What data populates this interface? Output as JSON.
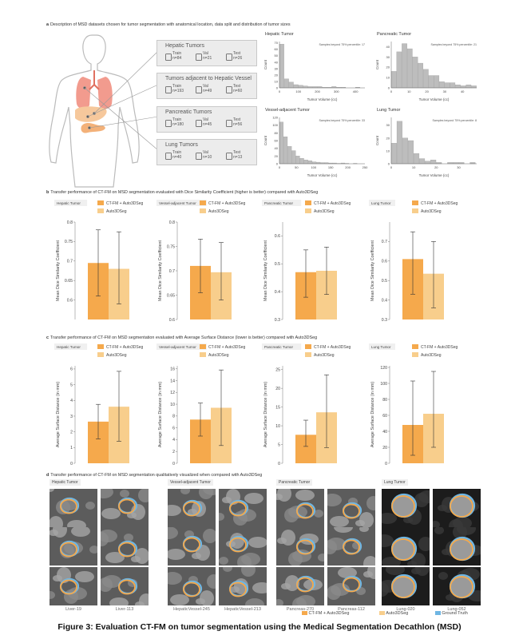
{
  "figure": {
    "caption": "Figure 3: Evaluation CT-FM on tumor segmentation using the Medical Segmentation Decathlon (MSD)",
    "colors": {
      "ctfm": "#F5A94C",
      "auto3d": "#F8CE8C",
      "gt": "#6FB6E3",
      "hist": "#bdbdbd"
    }
  },
  "section_a": {
    "label": "a",
    "title": "Description of MSD datasets chosen for tumor segmentation with anatomical location, data split and distribution of tumor sizes",
    "datasets": [
      {
        "name": "Hepatic Tumors",
        "train": "Train",
        "train_n": "n=84",
        "val": "Val",
        "val_n": "n=21",
        "test": "Test",
        "test_n": "n=26"
      },
      {
        "name": "Tumors adjacent to Hepatic Vessel",
        "train": "Train",
        "train_n": "n=193",
        "val": "Val",
        "val_n": "n=49",
        "test": "Test",
        "test_n": "n=60"
      },
      {
        "name": "Pancreatic Tumors",
        "train": "Train",
        "train_n": "n=180",
        "val": "Val",
        "val_n": "n=45",
        "test": "Test",
        "test_n": "n=56"
      },
      {
        "name": "Lung Tumors",
        "train": "Train",
        "train_n": "n=40",
        "val": "Val",
        "val_n": "n=10",
        "test": "Test",
        "test_n": "n=13"
      }
    ]
  },
  "chart_data": [
    {
      "type": "bar",
      "title": "Hepatic Tumor",
      "xlabel": "Tumor Volume (cc)",
      "ylabel": "Count",
      "annotation": "Samples beyond 75% percentile: 17",
      "x": [
        0,
        25,
        50,
        75,
        100,
        125,
        150,
        175,
        200,
        225,
        250,
        275,
        300,
        325,
        350,
        375,
        400,
        425
      ],
      "values": [
        68,
        14,
        9,
        5,
        4,
        3,
        2,
        2,
        2,
        1,
        1,
        2,
        1,
        1,
        0,
        0,
        1,
        0
      ],
      "xticks": [
        0,
        100,
        200,
        300,
        400
      ],
      "yticks": [
        0,
        10,
        20,
        30,
        40,
        50,
        60,
        70
      ],
      "xlim": [
        0,
        450
      ],
      "ylim": [
        0,
        72
      ]
    },
    {
      "type": "bar",
      "title": "Pancreatic Tumor",
      "xlabel": "Tumor Volume (cc)",
      "ylabel": "Count",
      "annotation": "Samples beyond 75% percentile: 21",
      "x": [
        0,
        3,
        6,
        9,
        12,
        15,
        18,
        21,
        24,
        27,
        30,
        33,
        36,
        39,
        42,
        45
      ],
      "values": [
        16,
        35,
        43,
        38,
        30,
        24,
        18,
        12,
        12,
        6,
        5,
        5,
        3,
        2,
        3,
        2
      ],
      "xticks": [
        0,
        10,
        20,
        30,
        40
      ],
      "yticks": [
        0,
        10,
        20,
        30,
        40
      ],
      "xlim": [
        0,
        48
      ],
      "ylim": [
        0,
        45
      ]
    },
    {
      "type": "bar",
      "title": "Vessel-adjacent Tumor",
      "xlabel": "Tumor Volume (cc)",
      "ylabel": "Count",
      "annotation": "Samples beyond 75% percentile: 33",
      "x": [
        0,
        12,
        24,
        36,
        48,
        60,
        72,
        84,
        96,
        108,
        120,
        132,
        144,
        156,
        168,
        180,
        192,
        204,
        216
      ],
      "values": [
        108,
        70,
        45,
        34,
        20,
        14,
        10,
        8,
        5,
        4,
        3,
        3,
        2,
        2,
        1,
        2,
        1,
        0,
        1
      ],
      "xticks": [
        0,
        50,
        100,
        150,
        200,
        250
      ],
      "yticks": [
        0,
        20,
        40,
        60,
        80,
        100,
        120
      ],
      "xlim": [
        0,
        250
      ],
      "ylim": [
        0,
        120
      ]
    },
    {
      "type": "bar",
      "title": "Lung Tumor",
      "xlabel": "Tumor Volume (cc)",
      "ylabel": "Count",
      "annotation": "Samples beyond 75% percentile: 8",
      "x": [
        0,
        2.5,
        5,
        7.5,
        10,
        12.5,
        15,
        17.5,
        20,
        22.5,
        25,
        27.5,
        30,
        32.5,
        35
      ],
      "values": [
        16,
        33,
        20,
        18,
        8,
        4,
        2,
        3,
        1,
        0,
        1,
        1,
        1,
        0,
        1
      ],
      "xticks": [
        0,
        10,
        20,
        30
      ],
      "yticks": [
        0,
        10,
        20,
        30
      ],
      "xlim": [
        0,
        38
      ],
      "ylim": [
        0,
        36
      ]
    },
    {
      "type": "bar",
      "title": "Hepatic Tumor",
      "ylabel": "Mean Dice Similarity Coefficient",
      "series": [
        {
          "name": "CT-FM + Auto3DSeg",
          "value": 0.695,
          "err": [
            0.61,
            0.78
          ]
        },
        {
          "name": "Auto3DSeg",
          "value": 0.68,
          "err": [
            0.59,
            0.775
          ]
        }
      ],
      "yticks": [
        0.6,
        0.65,
        0.7,
        0.75,
        0.8
      ],
      "ylim": [
        0.55,
        0.8
      ]
    },
    {
      "type": "bar",
      "title": "Vessel-adjacent Tumor",
      "ylabel": "Mean Dice Similarity Coefficient",
      "series": [
        {
          "name": "CT-FM + Auto3DSeg",
          "value": 0.71,
          "err": [
            0.655,
            0.765
          ]
        },
        {
          "name": "Auto3DSeg",
          "value": 0.697,
          "err": [
            0.64,
            0.758
          ]
        }
      ],
      "yticks": [
        0.6,
        0.65,
        0.7,
        0.75,
        0.8
      ],
      "ylim": [
        0.6,
        0.8
      ]
    },
    {
      "type": "bar",
      "title": "Pancreatic Tumor",
      "ylabel": "Mean Dice Similarity Coefficient",
      "series": [
        {
          "name": "CT-FM + Auto3DSeg",
          "value": 0.47,
          "err": [
            0.38,
            0.55
          ]
        },
        {
          "name": "Auto3DSeg",
          "value": 0.475,
          "err": [
            0.39,
            0.56
          ]
        }
      ],
      "yticks": [
        0.3,
        0.4,
        0.5,
        0.6
      ],
      "ylim": [
        0.3,
        0.65
      ]
    },
    {
      "type": "bar",
      "title": "Lung Tumor",
      "ylabel": "Mean Dice Similarity Coefficient",
      "series": [
        {
          "name": "CT-FM + Auto3DSeg",
          "value": 0.61,
          "err": [
            0.43,
            0.75
          ]
        },
        {
          "name": "Auto3DSeg",
          "value": 0.535,
          "err": [
            0.36,
            0.7
          ]
        }
      ],
      "yticks": [
        0.3,
        0.4,
        0.5,
        0.6,
        0.7
      ],
      "ylim": [
        0.3,
        0.8
      ]
    },
    {
      "type": "bar",
      "title": "Hepatic Tumor",
      "ylabel": "Average Surface Distance (in mm)",
      "series": [
        {
          "name": "CT-FM + Auto3DSeg",
          "value": 2.65,
          "err": [
            1.55,
            3.75
          ]
        },
        {
          "name": "Auto3DSeg",
          "value": 3.6,
          "err": [
            1.4,
            5.85
          ]
        }
      ],
      "yticks": [
        0,
        1,
        2,
        3,
        4,
        5,
        6
      ],
      "ylim": [
        0,
        6.2
      ]
    },
    {
      "type": "bar",
      "title": "Vessel-adjacent Tumor",
      "ylabel": "Average Surface Distance (in mm)",
      "series": [
        {
          "name": "CT-FM + Auto3DSeg",
          "value": 7.4,
          "err": [
            4.6,
            10.2
          ]
        },
        {
          "name": "Auto3DSeg",
          "value": 9.4,
          "err": [
            3.0,
            15.8
          ]
        }
      ],
      "yticks": [
        0,
        2,
        4,
        6,
        8,
        10,
        12,
        14,
        16
      ],
      "ylim": [
        0,
        16.5
      ]
    },
    {
      "type": "bar",
      "title": "Pancreatic Tumor",
      "ylabel": "Average Surface Distance (in mm)",
      "series": [
        {
          "name": "CT-FM + Auto3DSeg",
          "value": 7.6,
          "err": [
            4.5,
            11.5
          ]
        },
        {
          "name": "Auto3DSeg",
          "value": 13.6,
          "err": [
            4.2,
            23.6
          ]
        }
      ],
      "yticks": [
        0,
        5,
        10,
        15,
        20,
        25
      ],
      "ylim": [
        0,
        26
      ]
    },
    {
      "type": "bar",
      "title": "Lung Tumor",
      "ylabel": "Average Surface Distance (in mm)",
      "series": [
        {
          "name": "CT-FM + Auto3DSeg",
          "value": 48,
          "err": [
            10,
            103
          ]
        },
        {
          "name": "Auto3DSeg",
          "value": 62,
          "err": [
            20,
            115
          ]
        }
      ],
      "yticks": [
        0,
        20,
        40,
        60,
        80,
        100,
        120
      ],
      "ylim": [
        0,
        122
      ]
    }
  ],
  "section_b": {
    "label": "b",
    "title": "Transfer performance of CT-FM on MSD segmentation evaluated with Dice Similarity Coefficient (higher is better) compared with Auto3DSeg"
  },
  "section_c": {
    "label": "c",
    "title": "Transfer performance of CT-FM on MSD segmentation evaluated with Average Surface Distance (lower is better) compared with Auto3DSeg"
  },
  "section_d": {
    "label": "d",
    "title": "Transfer performance of CT-FM on MSD segmentation qualitatively visualized when compared with Auto3DSeg",
    "groups": [
      {
        "tag": "Hepatic Tumor",
        "cases": [
          "Liver-19",
          "Liver-113"
        ]
      },
      {
        "tag": "Vessel-adjacent Tumor",
        "cases": [
          "HepaticVessel-245",
          "HepaticVessel-213"
        ]
      },
      {
        "tag": "Pancreatic Tumor",
        "cases": [
          "Pancreas-270",
          "Pancreas-112"
        ]
      },
      {
        "tag": "Lung Tumor",
        "cases": [
          "Lung-020",
          "Lung-052"
        ]
      }
    ],
    "legend": [
      "CT-FM + Auto3DSeg",
      "Auto3DSeg",
      "Ground Truth"
    ]
  }
}
